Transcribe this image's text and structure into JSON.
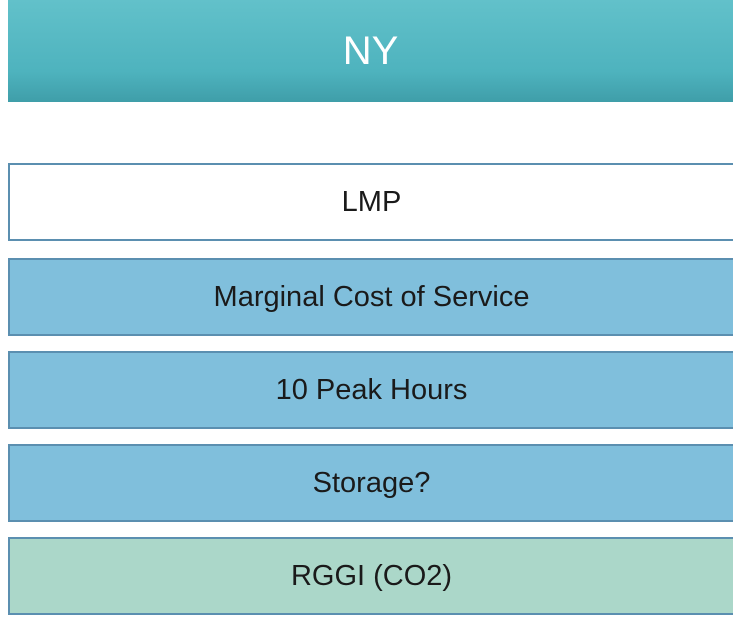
{
  "header": {
    "title": "NY"
  },
  "items": [
    {
      "label": "LMP"
    },
    {
      "label": "Marginal Cost of Service"
    },
    {
      "label": "10 Peak Hours"
    },
    {
      "label": "Storage?"
    },
    {
      "label": "RGGI (CO2)"
    }
  ]
}
